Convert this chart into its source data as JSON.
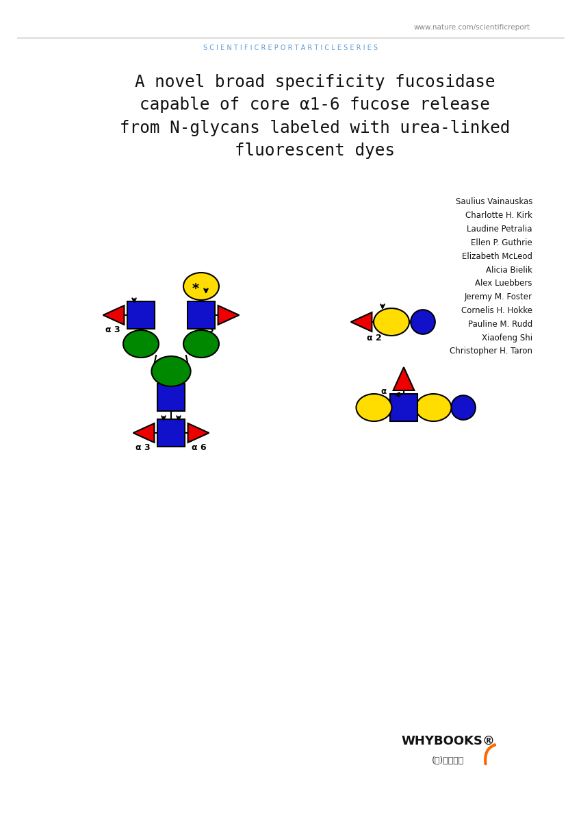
{
  "header_url": "www.nature.com/scientificreport",
  "header_series": "S C I E N T I F I C R E P O R T A R T I C L E S E R I E S",
  "title_text": "A novel broad specificity fucosidase\ncapable of core α1-6 fucose release\nfrom N-glycans labeled with urea‐linked\nfluorescent dyes",
  "authors": [
    "Saulius Vainauskas",
    "Charlotte H. Kirk",
    "Laudine Petralia",
    "Ellen P. Guthrie",
    "Elizabeth McLeod",
    "Alicia Bielik",
    "Alex Luebbers",
    "Jeremy M. Foster",
    "Cornelis H. Hokke",
    "Pauline M. Rudd",
    "Xiaofeng Shi",
    "Christopher H. Taron"
  ],
  "whybooks_text": "WHYBOOKS®",
  "whybooks_korean": "(주)와이북스",
  "colors": {
    "red": "#EE0000",
    "blue": "#1111CC",
    "green": "#008800",
    "yellow": "#FFDD00",
    "black": "#000000",
    "header_blue": "#5B9BD5",
    "bg": "#FFFFFF"
  }
}
